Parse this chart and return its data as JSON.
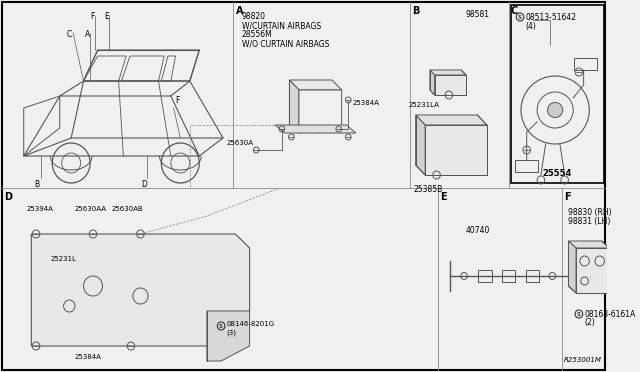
{
  "bg_color": "#f0f0ee",
  "border_color": "#000000",
  "text_color": "#000000",
  "line_color": "#555555",
  "sections": {
    "A_text_lines": [
      "98820",
      "W/CURTAIN AIRBAGS",
      "28556M",
      "W/O CURTAIN AIRBAGS"
    ],
    "A_part1": "25630A",
    "A_part2": "25384A",
    "B_part1": "98581",
    "B_part2": "25231LA",
    "B_part3": "25385B",
    "C_part1": "08513-51642",
    "C_qty": "(4)",
    "C_part2": "25554",
    "D_part1": "25394A",
    "D_part2": "25630AA",
    "D_part3": "25630AB",
    "D_part4": "25231L",
    "D_part5": "08146-8201G",
    "D_qty": "(3)",
    "D_part6": "25384A",
    "E_part1": "40740",
    "F_part1": "98830 (RH)",
    "F_part2": "98831 (LH)",
    "F_part3": "08168-6161A",
    "F_qty": "(2)",
    "footer": "R253001M"
  }
}
